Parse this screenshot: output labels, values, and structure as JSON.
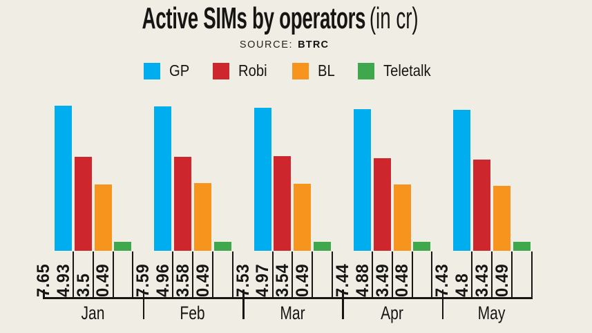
{
  "title": {
    "main": "Active SIMs by operators",
    "suffix": "(in cr)"
  },
  "source": {
    "label": "SOURCE:",
    "value": "BTRC"
  },
  "colors": {
    "background": "#f0ede5",
    "text": "#171513",
    "axis": "#171513",
    "gp_blue": "#00adee",
    "robi_red": "#cd262d",
    "bl_orange": "#f7941e",
    "teletalk_green": "#40a84c"
  },
  "chart_data": {
    "type": "bar",
    "title": "Active SIMs by operators (in cr)",
    "subtitle": "SOURCE: BTRC",
    "xlabel": "",
    "ylabel": "",
    "unit": "cr",
    "ylim": [
      0,
      8.1
    ],
    "grid": false,
    "legend_position": "top",
    "value_labels": "rotated-90-below-bars",
    "categories": [
      "Jan",
      "Feb",
      "Mar",
      "Apr",
      "May"
    ],
    "series": [
      {
        "name": "GP",
        "color": "#00adee",
        "values": [
          7.65,
          7.59,
          7.53,
          7.44,
          7.43
        ]
      },
      {
        "name": "Robi",
        "color": "#cd262d",
        "values": [
          4.93,
          4.96,
          4.97,
          4.88,
          4.8
        ]
      },
      {
        "name": "BL",
        "color": "#f7941e",
        "values": [
          3.5,
          3.58,
          3.54,
          3.49,
          3.43
        ]
      },
      {
        "name": "Teletalk",
        "color": "#40a84c",
        "values": [
          0.49,
          0.49,
          0.49,
          0.48,
          0.49
        ]
      }
    ]
  }
}
